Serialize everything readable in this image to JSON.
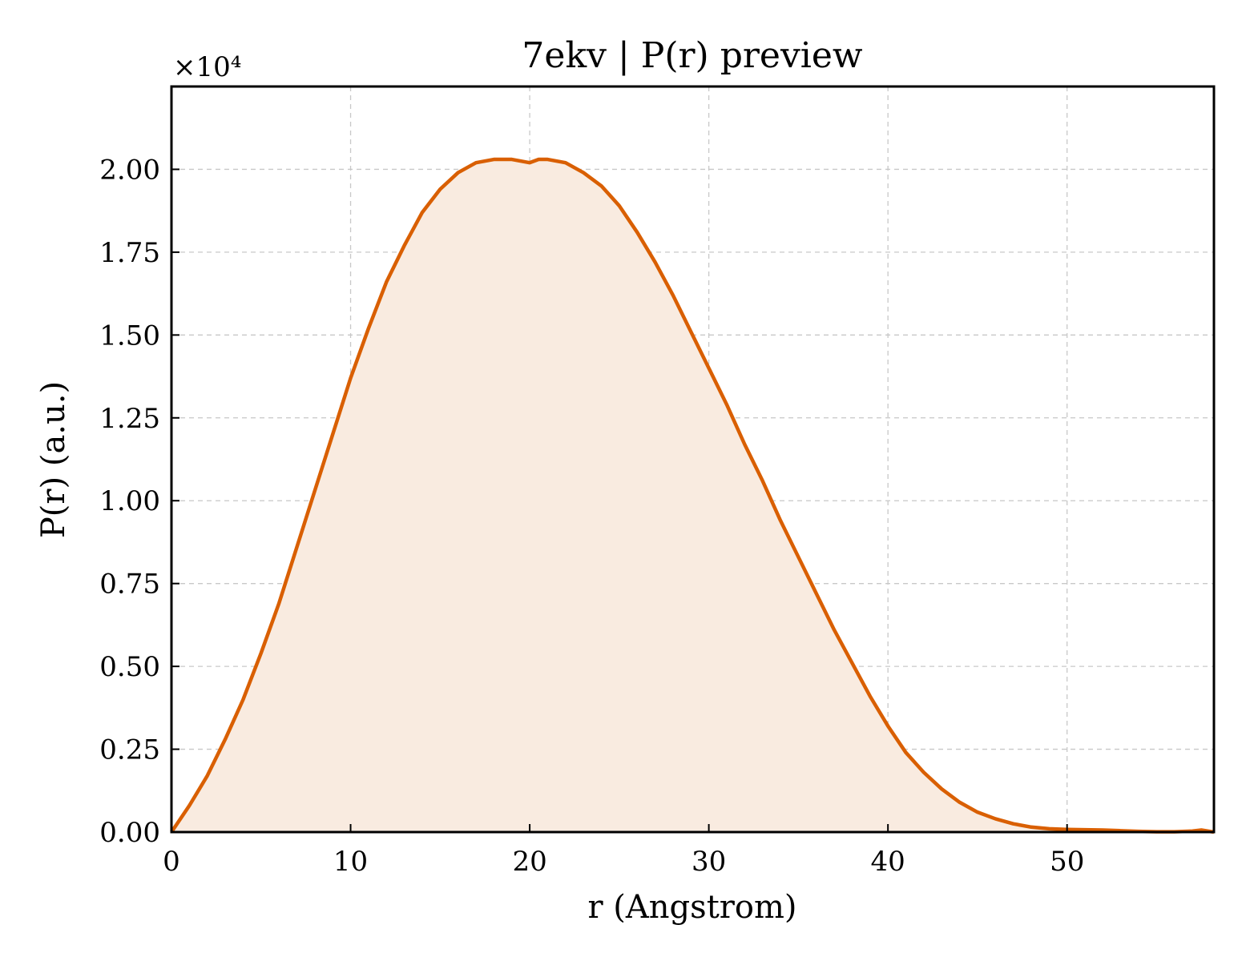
{
  "chart_data": {
    "type": "area",
    "title": "7ekv | P(r) preview",
    "xlabel": "r (Angstrom)",
    "ylabel": "P(r) (a.u.)",
    "y_multiplier_label": "×10⁴",
    "xlim": [
      0,
      58.2
    ],
    "ylim": [
      0,
      2.25
    ],
    "y_scale_factor": 10000,
    "x_ticks": [
      0,
      10,
      20,
      30,
      40,
      50
    ],
    "x_tick_labels": [
      "0",
      "10",
      "20",
      "30",
      "40",
      "50"
    ],
    "y_ticks": [
      0,
      0.25,
      0.5,
      0.75,
      1.0,
      1.25,
      1.5,
      1.75,
      2.0
    ],
    "y_tick_labels": [
      "0.00",
      "0.25",
      "0.50",
      "0.75",
      "1.00",
      "1.25",
      "1.50",
      "1.75",
      "2.00"
    ],
    "grid": true,
    "series": [
      {
        "color": "#d95f02",
        "fill_color": "#f9ebe0",
        "x": [
          0,
          1,
          2,
          3,
          4,
          5,
          6,
          7,
          8,
          9,
          10,
          11,
          12,
          13,
          14,
          15,
          16,
          17,
          18,
          19,
          20,
          20.5,
          21,
          22,
          23,
          24,
          25,
          26,
          27,
          28,
          29,
          30,
          31,
          32,
          33,
          34,
          35,
          36,
          37,
          38,
          39,
          40,
          41,
          42,
          43,
          44,
          45,
          46,
          47,
          48,
          49,
          50,
          51,
          52,
          53,
          54,
          55,
          56,
          57,
          57.5,
          58.2
        ],
        "y": [
          0.0,
          0.08,
          0.17,
          0.28,
          0.4,
          0.54,
          0.69,
          0.86,
          1.03,
          1.2,
          1.37,
          1.52,
          1.66,
          1.77,
          1.87,
          1.94,
          1.99,
          2.02,
          2.03,
          2.03,
          2.02,
          2.03,
          2.03,
          2.02,
          1.99,
          1.95,
          1.89,
          1.81,
          1.72,
          1.62,
          1.51,
          1.4,
          1.29,
          1.17,
          1.06,
          0.94,
          0.83,
          0.72,
          0.61,
          0.51,
          0.41,
          0.32,
          0.24,
          0.18,
          0.13,
          0.09,
          0.06,
          0.04,
          0.025,
          0.015,
          0.01,
          0.008,
          0.007,
          0.006,
          0.004,
          0.002,
          0.001,
          0.001,
          0.003,
          0.006,
          0.0
        ]
      }
    ]
  }
}
